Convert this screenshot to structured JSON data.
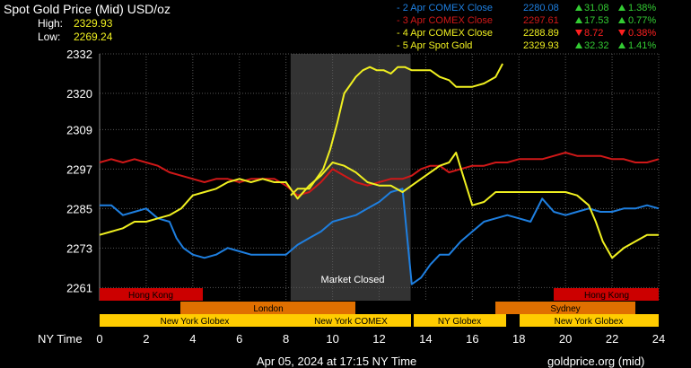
{
  "header": {
    "title": "Spot Gold Price (Mid) USD/oz",
    "high_label": "High:",
    "high_value": "2329.93",
    "low_label": "Low:",
    "low_value": "2269.24"
  },
  "legend": [
    {
      "label": "- 2 Apr COMEX Close",
      "price": "2280.08",
      "change": "31.08",
      "pct": "1.38%",
      "dir": "up",
      "color": "#1e7fe0"
    },
    {
      "label": "- 3 Apr COMEX Close",
      "price": "2297.61",
      "change": "17.53",
      "pct": "0.77%",
      "dir": "up",
      "color": "#d01818"
    },
    {
      "label": "- 4 Apr COMEX Close",
      "price": "2288.89",
      "change": "8.72",
      "pct": "0.38%",
      "dir": "down",
      "color": "#f0f020"
    },
    {
      "label": "- 5 Apr Spot Gold",
      "price": "2329.93",
      "change": "32.32",
      "pct": "1.41%",
      "dir": "up",
      "color": "#f0f020"
    }
  ],
  "market_closed_label": "Market Closed",
  "sessions": {
    "hong_kong_1": "Hong Kong",
    "hong_kong_2": "Hong Kong",
    "london": "London",
    "sydney": "Sydney",
    "ny_globex_1": "New York Globex",
    "ny_comex": "New York COMEX",
    "ny_globex_2": "NY Globex",
    "ny_globex_3": "New York Globex"
  },
  "x_axis_label": "NY Time",
  "footer": {
    "timestamp": "Apr 05, 2024 at 17:15 NY Time",
    "source": "goldprice.org (mid)"
  },
  "colors": {
    "up": "#33cc33",
    "down": "#ff2020",
    "title": "#ffffff",
    "hilo": "#f0f020",
    "market_closed_shade": "#333333",
    "hk_bar": "#cc0000",
    "london_bar": "#e07000",
    "ny_bar": "#ffcc00"
  },
  "chart_data": {
    "type": "line",
    "xlim": [
      0,
      24
    ],
    "ylim": [
      2257,
      2332
    ],
    "x_ticks": [
      0,
      2,
      4,
      6,
      8,
      10,
      12,
      14,
      16,
      18,
      20,
      22,
      24
    ],
    "y_ticks": [
      2332,
      2320,
      2309,
      2297,
      2285,
      2273,
      2261
    ],
    "market_closed_x": [
      8.2,
      13.35
    ],
    "series": [
      {
        "name": "2 Apr COMEX Close",
        "color": "#1e7fe0",
        "x": [
          0,
          0.5,
          1.0,
          1.5,
          2.0,
          2.5,
          3.0,
          3.3,
          3.6,
          4.0,
          4.5,
          5.0,
          5.5,
          6.0,
          6.5,
          7.0,
          7.5,
          8.0,
          8.5,
          9.0,
          9.5,
          10.0,
          10.5,
          11.0,
          11.5,
          12.0,
          12.5,
          13.0,
          13.4,
          13.8,
          14.2,
          14.6,
          15.0,
          15.5,
          16.0,
          16.5,
          17.0,
          17.5,
          18.0,
          18.5,
          19.0,
          19.5,
          20.0,
          20.5,
          21.0,
          21.5,
          22.0,
          22.5,
          23.0,
          23.5,
          24.0
        ],
        "y": [
          2286,
          2286,
          2283,
          2284,
          2285,
          2282,
          2281,
          2276,
          2273,
          2271,
          2270,
          2271,
          2273,
          2272,
          2271,
          2271,
          2271,
          2271,
          2274,
          2276,
          2278,
          2281,
          2282,
          2283,
          2285,
          2287,
          2290,
          2291,
          2262,
          2264,
          2268,
          2271,
          2271,
          2275,
          2278,
          2281,
          2282,
          2283,
          2282,
          2281,
          2288,
          2284,
          2283,
          2284,
          2285,
          2284,
          2284,
          2285,
          2285,
          2286,
          2285
        ]
      },
      {
        "name": "3 Apr COMEX Close",
        "color": "#d01818",
        "x": [
          0,
          0.5,
          1.0,
          1.5,
          2.0,
          2.5,
          3.0,
          3.5,
          4.0,
          4.5,
          5.0,
          5.5,
          6.0,
          6.5,
          7.0,
          7.5,
          8.0,
          8.5,
          9.0,
          9.5,
          10.0,
          10.5,
          11.0,
          11.5,
          12.0,
          12.5,
          13.0,
          13.4,
          13.8,
          14.2,
          14.6,
          15.0,
          15.5,
          16.0,
          16.5,
          17.0,
          17.5,
          18.0,
          18.5,
          19.0,
          19.5,
          20.0,
          20.5,
          21.0,
          21.5,
          22.0,
          22.5,
          23.0,
          23.5,
          24.0
        ],
        "y": [
          2299,
          2300,
          2299,
          2300,
          2299,
          2298,
          2296,
          2295,
          2294,
          2293,
          2294,
          2294,
          2293,
          2294,
          2294,
          2294,
          2292,
          2289,
          2290,
          2293,
          2297,
          2295,
          2293,
          2292,
          2293,
          2294,
          2294,
          2295,
          2297,
          2298,
          2298,
          2296,
          2297,
          2298,
          2298,
          2299,
          2299,
          2300,
          2300,
          2300,
          2301,
          2302,
          2301,
          2301,
          2301,
          2300,
          2300,
          2299,
          2299,
          2300
        ]
      },
      {
        "name": "4 Apr COMEX Close",
        "color": "#f0f020",
        "x": [
          0,
          0.5,
          1.0,
          1.5,
          2.0,
          2.5,
          3.0,
          3.5,
          4.0,
          4.5,
          5.0,
          5.5,
          6.0,
          6.5,
          7.0,
          7.5,
          8.0,
          8.5,
          9.0,
          9.5,
          10.0,
          10.5,
          11.0,
          11.5,
          12.0,
          12.5,
          13.0,
          13.4,
          13.8,
          14.2,
          14.6,
          15.0,
          15.3,
          15.6,
          16.0,
          16.5,
          17.0,
          17.5,
          18.0,
          18.5,
          19.0,
          19.5,
          20.0,
          20.5,
          21.0,
          21.3,
          21.6,
          22.0,
          22.5,
          23.0,
          23.5,
          24.0
        ],
        "y": [
          2277,
          2278,
          2279,
          2281,
          2281,
          2282,
          2283,
          2285,
          2289,
          2290,
          2291,
          2293,
          2294,
          2293,
          2294,
          2293,
          2293,
          2288,
          2292,
          2295,
          2299,
          2298,
          2296,
          2293,
          2292,
          2292,
          2290,
          2292,
          2294,
          2296,
          2298,
          2299,
          2302,
          2295,
          2286,
          2287,
          2290,
          2290,
          2290,
          2290,
          2290,
          2290,
          2290,
          2289,
          2286,
          2281,
          2275,
          2270,
          2273,
          2275,
          2277,
          2277
        ]
      },
      {
        "name": "5 Apr Spot Gold",
        "color": "#f0f020",
        "x": [
          8.2,
          8.5,
          9.0,
          9.3,
          9.6,
          9.9,
          10.2,
          10.5,
          10.8,
          11.0,
          11.3,
          11.6,
          11.9,
          12.2,
          12.5,
          12.8,
          13.1,
          13.4,
          13.8,
          14.2,
          14.6,
          15.0,
          15.3,
          15.6,
          16.0,
          16.5,
          17.0,
          17.3
        ],
        "y": [
          2289,
          2291,
          2291,
          2294,
          2297,
          2303,
          2311,
          2320,
          2323,
          2325,
          2327,
          2328,
          2327,
          2327,
          2326,
          2328,
          2328,
          2327,
          2327,
          2327,
          2325,
          2324,
          2322,
          2322,
          2322,
          2323,
          2325,
          2329
        ]
      }
    ]
  }
}
